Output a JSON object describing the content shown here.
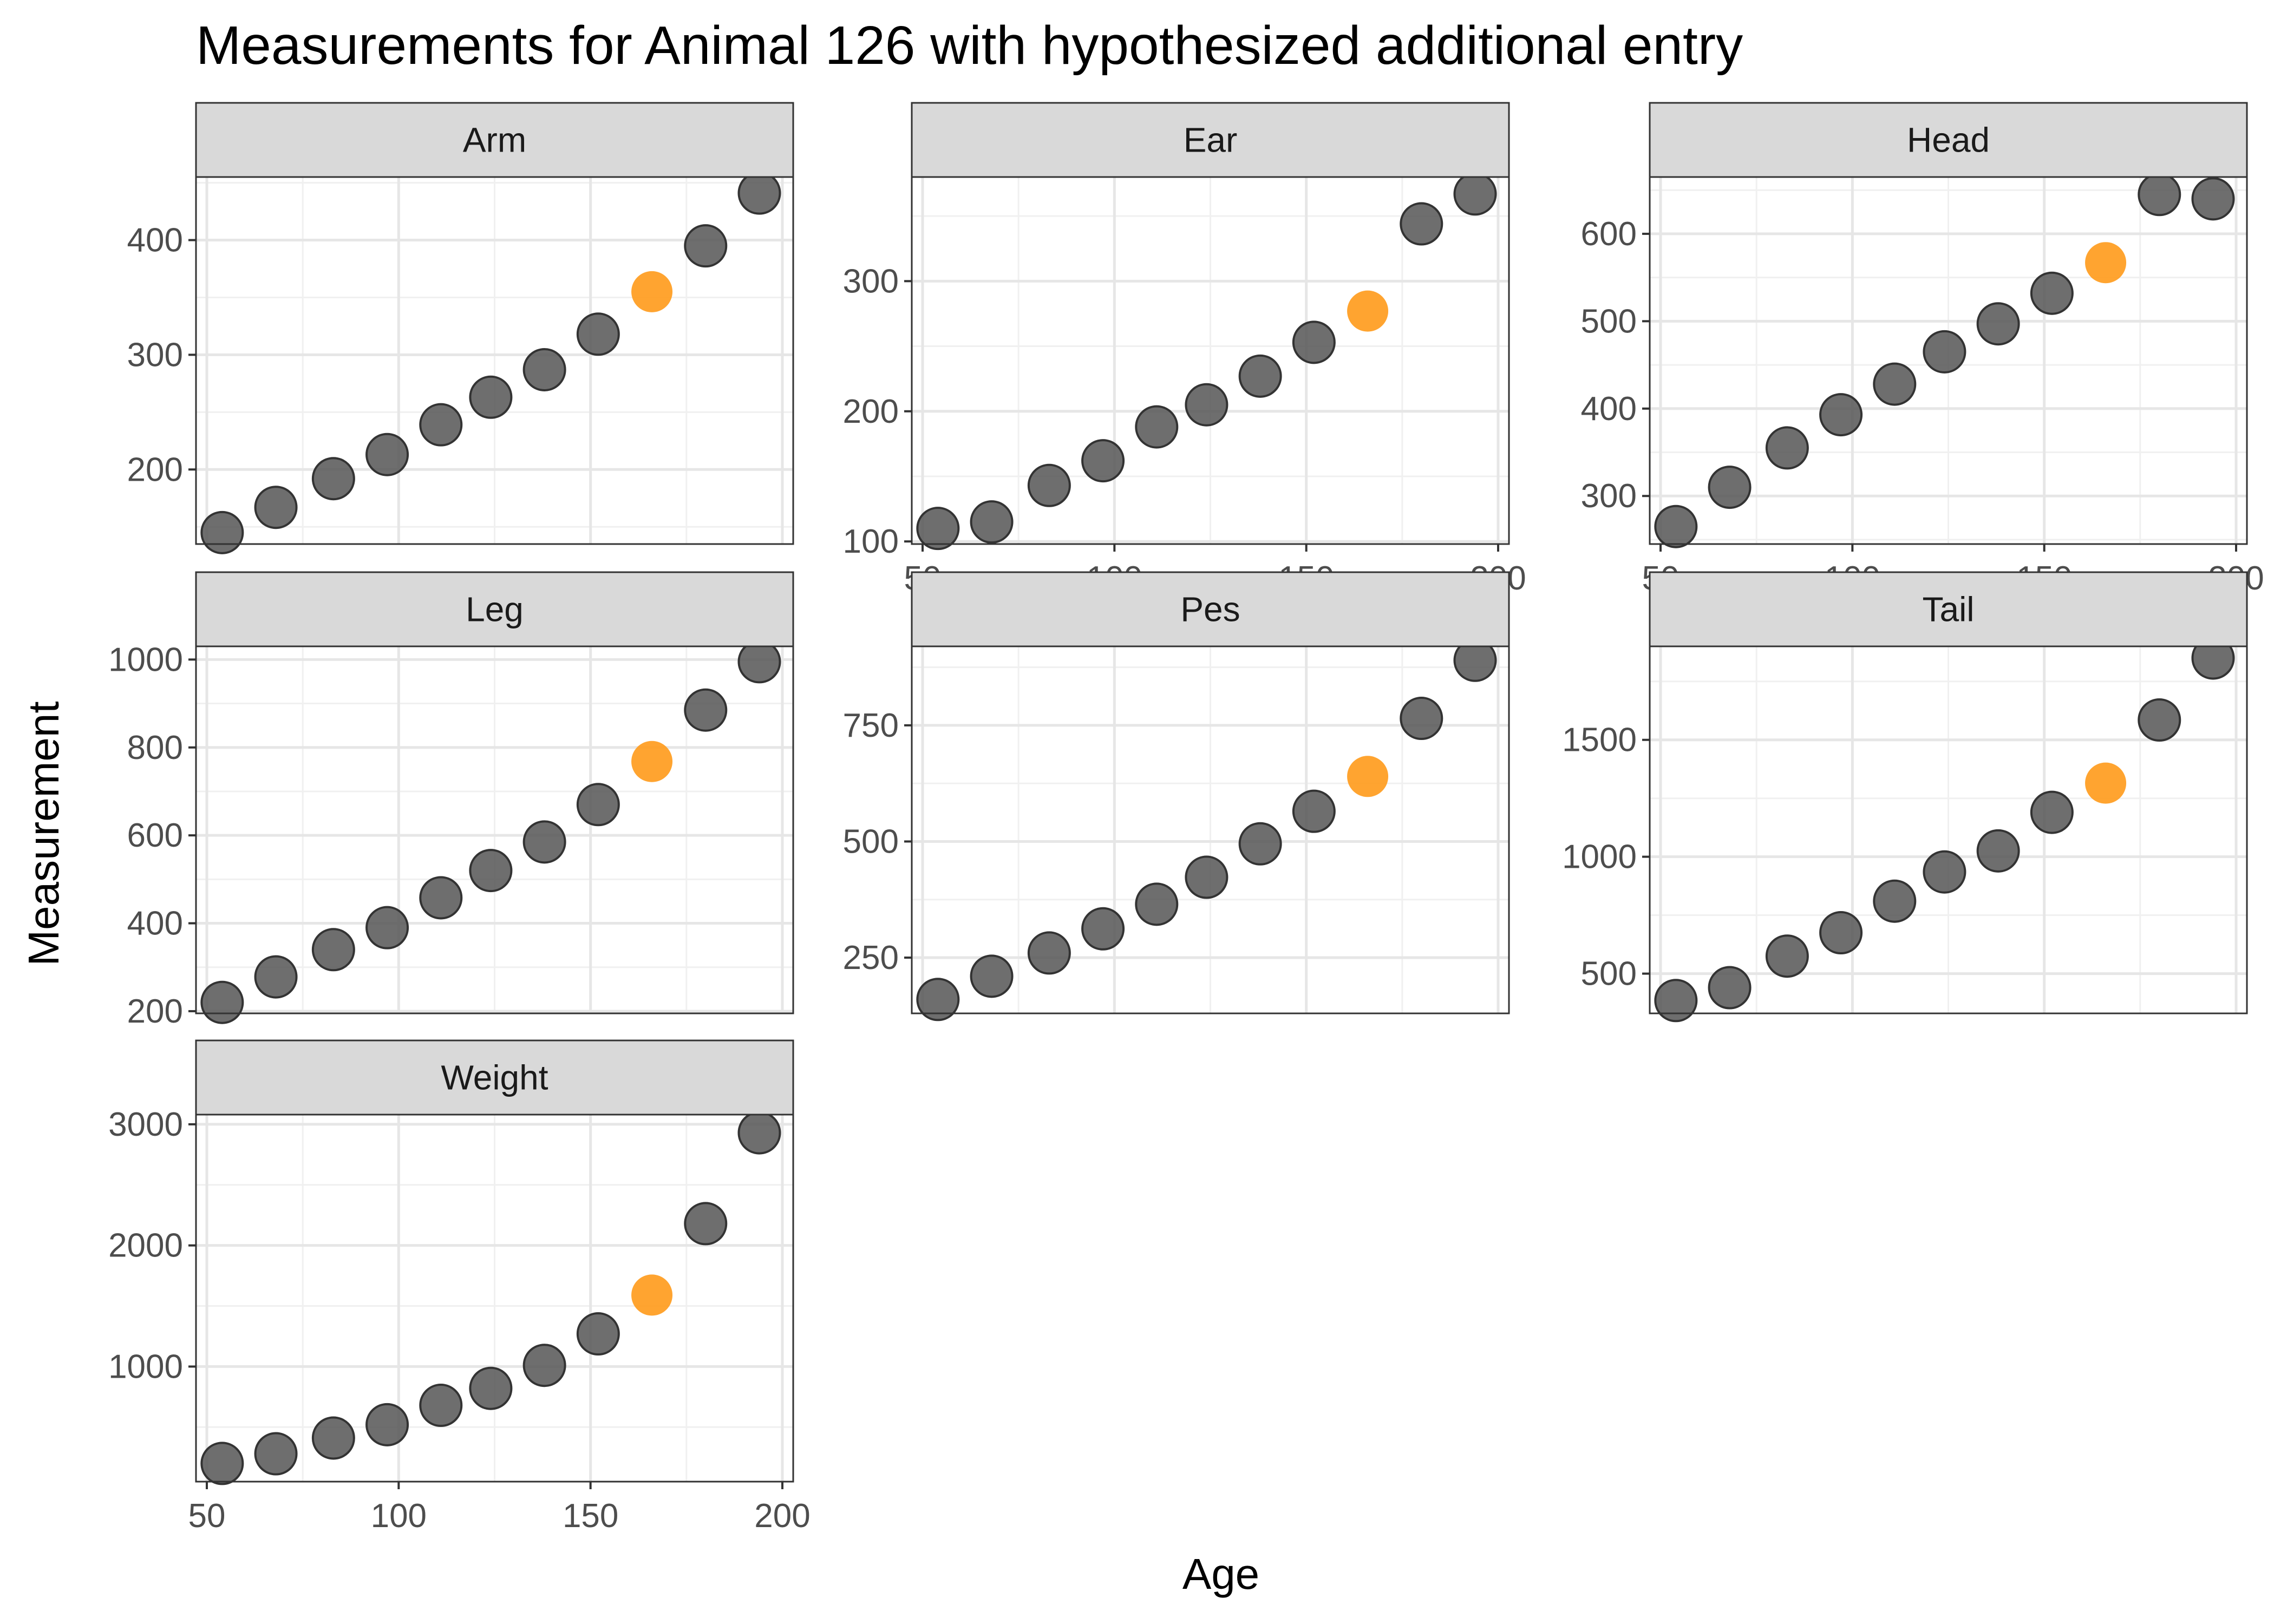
{
  "chart_data": {
    "type": "scatter",
    "title": "Measurements for Animal 126 with hypothesized additional entry",
    "xlabel": "Age",
    "ylabel": "Measurement",
    "xlim": [
      50,
      200
    ],
    "x_ticks": [
      50,
      100,
      150,
      200
    ],
    "layout": "facet-wrap-3-columns",
    "grid": true,
    "highlight_note": "orange point = hypothesized additional entry (Age 166)",
    "colors": {
      "observed": "#555555",
      "hypothesized": "#ff9a1a",
      "strip": "#d9d9d9"
    },
    "panels": [
      {
        "name": "Arm",
        "ylim": [
          135,
          455
        ],
        "y_ticks": [
          200,
          300,
          400
        ],
        "points": [
          {
            "x": 54,
            "y": 145
          },
          {
            "x": 68,
            "y": 167
          },
          {
            "x": 83,
            "y": 192
          },
          {
            "x": 97,
            "y": 213
          },
          {
            "x": 111,
            "y": 239
          },
          {
            "x": 124,
            "y": 263
          },
          {
            "x": 138,
            "y": 287
          },
          {
            "x": 152,
            "y": 318
          },
          {
            "x": 180,
            "y": 395
          },
          {
            "x": 194,
            "y": 441
          }
        ],
        "hypothesized": {
          "x": 166,
          "y": 355
        }
      },
      {
        "name": "Ear",
        "ylim": [
          98,
          380
        ],
        "y_ticks": [
          100,
          200,
          300
        ],
        "points": [
          {
            "x": 54,
            "y": 110
          },
          {
            "x": 68,
            "y": 115
          },
          {
            "x": 83,
            "y": 143
          },
          {
            "x": 97,
            "y": 162
          },
          {
            "x": 111,
            "y": 188
          },
          {
            "x": 124,
            "y": 205
          },
          {
            "x": 138,
            "y": 227
          },
          {
            "x": 152,
            "y": 253
          },
          {
            "x": 180,
            "y": 344
          },
          {
            "x": 194,
            "y": 367
          }
        ],
        "hypothesized": {
          "x": 166,
          "y": 277
        }
      },
      {
        "name": "Head",
        "ylim": [
          245,
          665
        ],
        "y_ticks": [
          300,
          400,
          500,
          600
        ],
        "points": [
          {
            "x": 54,
            "y": 265
          },
          {
            "x": 68,
            "y": 310
          },
          {
            "x": 83,
            "y": 355
          },
          {
            "x": 97,
            "y": 393
          },
          {
            "x": 111,
            "y": 428
          },
          {
            "x": 124,
            "y": 465
          },
          {
            "x": 138,
            "y": 497
          },
          {
            "x": 152,
            "y": 532
          },
          {
            "x": 180,
            "y": 645
          },
          {
            "x": 194,
            "y": 640
          }
        ],
        "hypothesized": {
          "x": 166,
          "y": 567
        }
      },
      {
        "name": "Leg",
        "ylim": [
          195,
          1030
        ],
        "y_ticks": [
          200,
          400,
          600,
          800,
          1000
        ],
        "points": [
          {
            "x": 54,
            "y": 220
          },
          {
            "x": 68,
            "y": 278
          },
          {
            "x": 83,
            "y": 340
          },
          {
            "x": 97,
            "y": 390
          },
          {
            "x": 111,
            "y": 458
          },
          {
            "x": 124,
            "y": 520
          },
          {
            "x": 138,
            "y": 585
          },
          {
            "x": 152,
            "y": 670
          },
          {
            "x": 180,
            "y": 885
          },
          {
            "x": 194,
            "y": 995
          }
        ],
        "hypothesized": {
          "x": 166,
          "y": 768
        }
      },
      {
        "name": "Pes",
        "ylim": [
          130,
          920
        ],
        "y_ticks": [
          250,
          500,
          750
        ],
        "points": [
          {
            "x": 54,
            "y": 160
          },
          {
            "x": 68,
            "y": 210
          },
          {
            "x": 83,
            "y": 260
          },
          {
            "x": 97,
            "y": 312
          },
          {
            "x": 111,
            "y": 365
          },
          {
            "x": 124,
            "y": 423
          },
          {
            "x": 138,
            "y": 495
          },
          {
            "x": 152,
            "y": 565
          },
          {
            "x": 180,
            "y": 765
          },
          {
            "x": 194,
            "y": 890
          }
        ],
        "hypothesized": {
          "x": 166,
          "y": 640
        }
      },
      {
        "name": "Tail",
        "ylim": [
          330,
          1900
        ],
        "y_ticks": [
          500,
          1000,
          1500
        ],
        "points": [
          {
            "x": 54,
            "y": 385
          },
          {
            "x": 68,
            "y": 440
          },
          {
            "x": 83,
            "y": 575
          },
          {
            "x": 97,
            "y": 675
          },
          {
            "x": 111,
            "y": 810
          },
          {
            "x": 124,
            "y": 935
          },
          {
            "x": 138,
            "y": 1025
          },
          {
            "x": 152,
            "y": 1190
          },
          {
            "x": 180,
            "y": 1585
          },
          {
            "x": 194,
            "y": 1850
          }
        ],
        "hypothesized": {
          "x": 166,
          "y": 1315
        }
      },
      {
        "name": "Weight",
        "ylim": [
          50,
          3080
        ],
        "y_ticks": [
          1000,
          2000,
          3000
        ],
        "points": [
          {
            "x": 54,
            "y": 200
          },
          {
            "x": 68,
            "y": 280
          },
          {
            "x": 83,
            "y": 410
          },
          {
            "x": 97,
            "y": 520
          },
          {
            "x": 111,
            "y": 680
          },
          {
            "x": 124,
            "y": 820
          },
          {
            "x": 138,
            "y": 1010
          },
          {
            "x": 152,
            "y": 1270
          },
          {
            "x": 180,
            "y": 2180
          },
          {
            "x": 194,
            "y": 2930
          }
        ],
        "hypothesized": {
          "x": 166,
          "y": 1590
        }
      }
    ]
  }
}
